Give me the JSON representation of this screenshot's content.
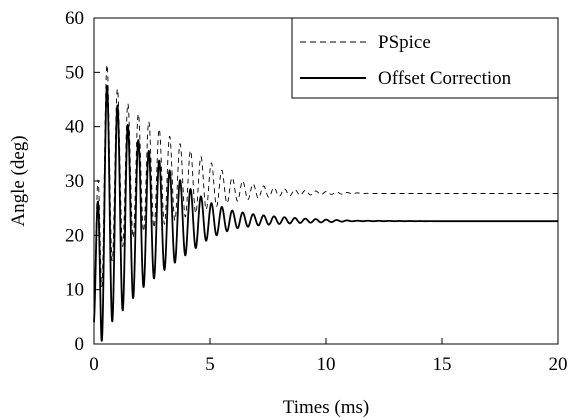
{
  "chart_data": {
    "type": "line",
    "title": "",
    "xlabel": "Times (ms)",
    "ylabel": "Angle (deg)",
    "xlim": [
      0,
      20
    ],
    "ylim": [
      0,
      60
    ],
    "x_ticks": [
      0,
      5,
      10,
      15,
      20
    ],
    "y_ticks": [
      0,
      10,
      20,
      30,
      40,
      50,
      60
    ],
    "grid": false,
    "legend": "top-right",
    "series": [
      {
        "name": "PSpice",
        "style": "dashed",
        "color": "#000000",
        "oscillation_period_ms": 0.45,
        "x": [
          0,
          0.3,
          0.5,
          1,
          1.5,
          2,
          3,
          4,
          5,
          6,
          7,
          8,
          9,
          9.8,
          12,
          15,
          20
        ],
        "upper_envelope": [
          5,
          56.5,
          52,
          47,
          44,
          42,
          39,
          36,
          33.5,
          30.5,
          29.3,
          28.6,
          28.3,
          28.1,
          27.7,
          27.7,
          27.7
        ],
        "lower_envelope": [
          5,
          10,
          13,
          17,
          19,
          20.5,
          22,
          23.5,
          25,
          26.2,
          26.8,
          27.2,
          27.4,
          27.5,
          27.7,
          27.7,
          27.7
        ],
        "steady_state": 27.7
      },
      {
        "name": "Offset Correction",
        "style": "solid",
        "color": "#000000",
        "oscillation_period_ms": 0.45,
        "x": [
          0,
          0.3,
          0.5,
          1,
          1.5,
          2,
          3,
          4,
          5,
          6,
          7,
          8,
          9,
          10,
          11.2,
          15,
          20
        ],
        "upper_envelope": [
          4,
          51,
          48,
          44,
          40,
          37,
          33,
          29,
          26,
          24.5,
          23.8,
          23.4,
          23.1,
          22.9,
          22.7,
          22.6,
          22.6
        ],
        "lower_envelope": [
          4,
          0,
          3,
          5,
          7.5,
          10,
          13.5,
          16.5,
          19.5,
          21.2,
          21.8,
          22.1,
          22.3,
          22.4,
          22.6,
          22.6,
          22.6
        ],
        "steady_state": 22.6
      }
    ]
  }
}
